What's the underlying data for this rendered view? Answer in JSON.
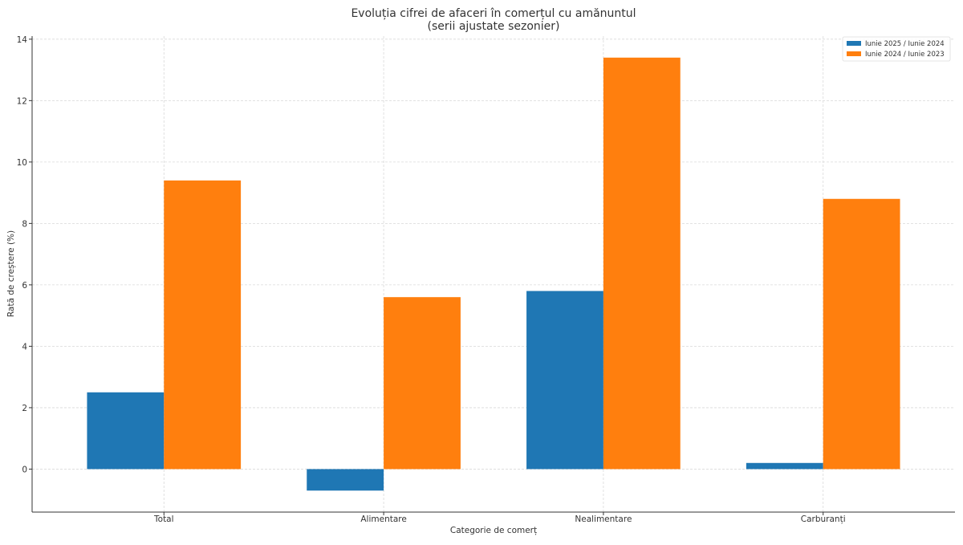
{
  "chart_data": {
    "type": "bar",
    "title": "Evoluția cifrei de afaceri în comerțul cu amănuntul",
    "subtitle": "(serii ajustate sezonier)",
    "xlabel": "Categorie de comerț",
    "ylabel": "Rată de creștere (%)",
    "categories": [
      "Total",
      "Alimentare",
      "Nealimentare",
      "Carburanți"
    ],
    "series": [
      {
        "name": "Iunie 2025 / Iunie 2024",
        "color": "#1f77b4",
        "values": [
          2.5,
          -0.7,
          5.8,
          0.2
        ]
      },
      {
        "name": "Iunie 2024 / Iunie 2023",
        "color": "#ff7f0e",
        "values": [
          9.4,
          5.6,
          13.4,
          8.8
        ]
      }
    ],
    "ylim": [
      -1.4,
      14.1
    ],
    "yticks": [
      0,
      2,
      4,
      6,
      8,
      10,
      12,
      14
    ],
    "grid": true,
    "legend_position": "top-right"
  }
}
